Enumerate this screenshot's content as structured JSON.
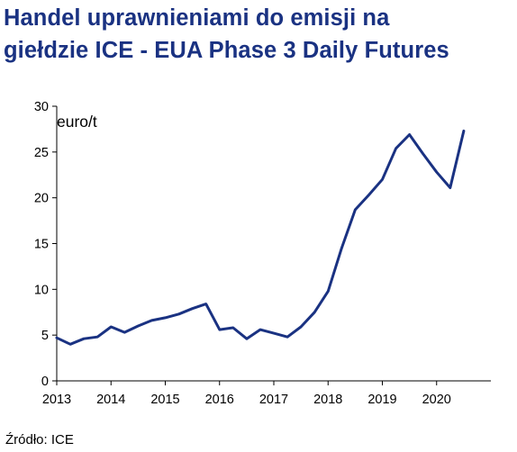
{
  "title_lines": [
    "Handel uprawnieniami do emisji na",
    "giełdzie ICE - EUA Phase 3 Daily Futures"
  ],
  "source_text": "Źródło: ICE",
  "colors": {
    "title": "#1a3282",
    "line": "#1a3282",
    "axis": "#000000"
  },
  "chart_data": {
    "type": "line",
    "title": "Handel uprawnieniami do emisji na giełdzie ICE - EUA Phase 3 Daily Futures",
    "ylabel": "euro/t",
    "xlabel": "",
    "x_ticks": [
      "2013",
      "2014",
      "2015",
      "2016",
      "2017",
      "2018",
      "2019",
      "2020"
    ],
    "y_ticks": [
      0,
      5,
      10,
      15,
      20,
      25,
      30
    ],
    "xlim": [
      2013,
      2021.0
    ],
    "ylim": [
      0,
      30
    ],
    "grid": false,
    "series": [
      {
        "name": "",
        "x": [
          2013.0,
          2013.25,
          2013.5,
          2013.75,
          2014.0,
          2014.25,
          2014.5,
          2014.75,
          2015.0,
          2015.25,
          2015.5,
          2015.75,
          2016.0,
          2016.25,
          2016.5,
          2016.75,
          2017.0,
          2017.25,
          2017.5,
          2017.75,
          2018.0,
          2018.25,
          2018.5,
          2018.75,
          2019.0,
          2019.25,
          2019.5,
          2019.75,
          2020.0,
          2020.25,
          2020.5
        ],
        "y": [
          4.7,
          4.0,
          4.6,
          4.8,
          5.9,
          5.3,
          6.0,
          6.6,
          6.9,
          7.3,
          7.9,
          8.4,
          5.6,
          5.8,
          4.6,
          5.6,
          5.2,
          4.8,
          5.9,
          7.5,
          9.8,
          14.5,
          18.7,
          20.3,
          22.0,
          25.4,
          26.9,
          24.8,
          22.8,
          21.1,
          27.3
        ]
      }
    ]
  }
}
